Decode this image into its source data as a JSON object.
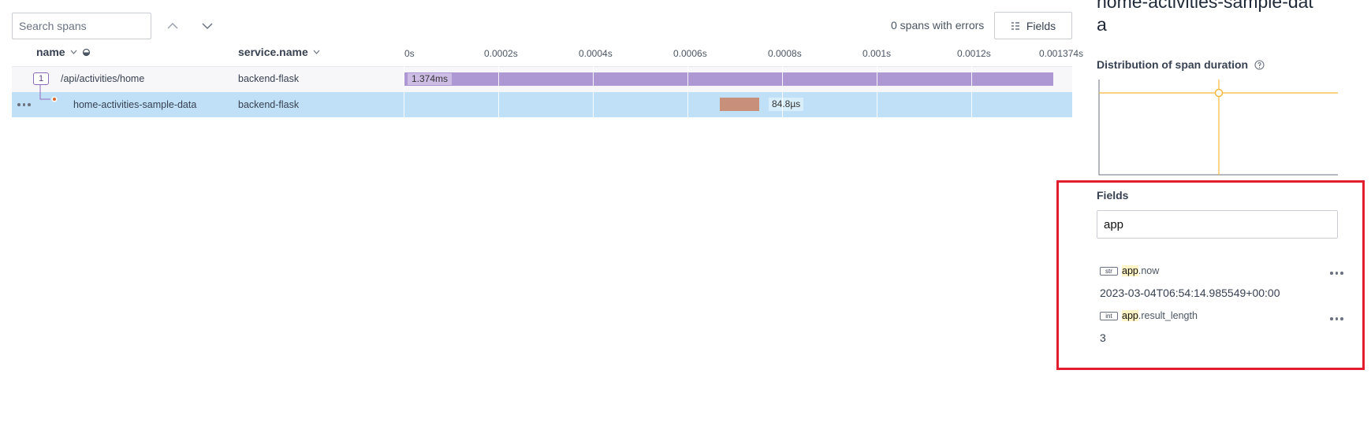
{
  "toolbar": {
    "search_placeholder": "Search spans",
    "errors_text": "0 spans with errors",
    "fields_button_label": "Fields"
  },
  "columns": {
    "name": "name",
    "service": "service.name"
  },
  "timeline": {
    "ticks": [
      "0s",
      "0.0002s",
      "0.0004s",
      "0.0006s",
      "0.0008s",
      "0.001s",
      "0.0012s",
      "0.001374s"
    ]
  },
  "spans": [
    {
      "badge": "1",
      "name": "/api/activities/home",
      "service": "backend-flask",
      "duration_label": "1.374ms"
    },
    {
      "name": "home-activities-sample-data",
      "service": "backend-flask",
      "duration_label": "84.8µs"
    }
  ],
  "panel": {
    "title": "home-activities-sample-dat\na",
    "distribution_label": "Distribution of span duration",
    "fields_heading": "Fields",
    "fields_filter_value": "app",
    "fields": [
      {
        "type": "str",
        "name_highlight": "app",
        "name_rest": ".now",
        "value": "2023-03-04T06:54:14.985549+00:00"
      },
      {
        "type": "int",
        "name_highlight": "app",
        "name_rest": ".result_length",
        "value": "3"
      }
    ]
  },
  "colors": {
    "parent_bar": "#ad98d3",
    "child_bar": "#c8907a",
    "selected_row": "#bfe0f6",
    "chart_line": "#f5b842",
    "highlight_box": "#e11d2e"
  }
}
